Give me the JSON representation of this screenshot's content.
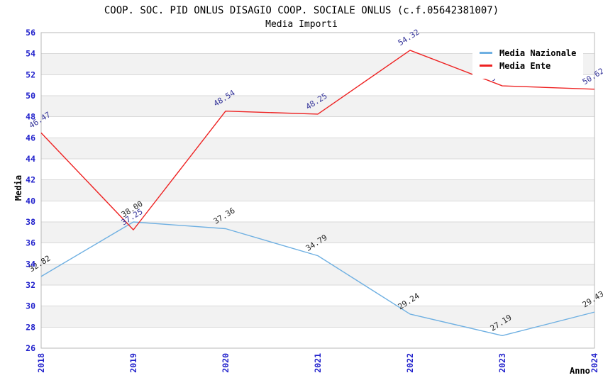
{
  "title": "COOP. SOC. PID ONLUS DISAGIO COOP. SOCIALE ONLUS (c.f.05642381007)",
  "subtitle": "Media Importi",
  "axes": {
    "x_title": "Anno",
    "y_title": "Media"
  },
  "legend": {
    "items": [
      {
        "label": "Media Nazionale",
        "color": "#6fb0e2"
      },
      {
        "label": "Media Ente",
        "color": "#ee2222"
      }
    ]
  },
  "chart_data": {
    "type": "line",
    "title": "COOP. SOC. PID ONLUS DISAGIO COOP. SOCIALE ONLUS (c.f.05642381007)",
    "subtitle": "Media Importi",
    "xlabel": "Anno",
    "ylabel": "Media",
    "categories": [
      "2018",
      "2019",
      "2020",
      "2021",
      "2022",
      "2023",
      "2024"
    ],
    "series": [
      {
        "name": "Media Nazionale",
        "color": "#6fb0e2",
        "label_color": "#222222",
        "values": [
          32.82,
          38.0,
          37.36,
          34.79,
          29.24,
          27.19,
          29.43
        ]
      },
      {
        "name": "Media Ente",
        "color": "#ee2222",
        "label_color": "#333399",
        "values": [
          46.47,
          37.25,
          48.54,
          48.25,
          54.32,
          50.94,
          50.62
        ]
      }
    ],
    "ylim": [
      26,
      56
    ],
    "ytick_step": 2,
    "grid": true,
    "legend_position": "top-right",
    "styles": {
      "tick_color": "#2222cc",
      "grid_color": "#d9d9d9",
      "band_colors": [
        "#ffffff",
        "#f2f2f2"
      ],
      "border_color": "#b8b8b8"
    }
  }
}
